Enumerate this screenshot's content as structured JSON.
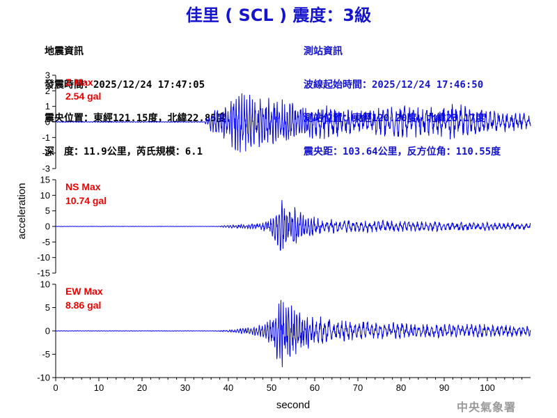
{
  "header": {
    "title": "佳里 ( SCL ) 震度：3級",
    "quake_info": [
      "地震資訊",
      "發震時間：2025/12/24 17:47:05",
      "震央位置：東經121.15度，北緯22.85度",
      "深　度：11.9公里，芮氏規模：6.1"
    ],
    "station_info": [
      "測站資訊",
      "波線起始時間：2025/12/24 17:46:50",
      "測站位置：東經120.20度，北緯23.17度",
      "震央距：103.64公里，反方位角：110.55度"
    ]
  },
  "credit": "中央氣象署",
  "colors": {
    "trace": "#0000ee",
    "max_label": "#ee0000",
    "title": "#1414cc"
  },
  "chart_data": {
    "type": "line",
    "xlabel": "second",
    "ylabel": "acceleration",
    "xlim": [
      0,
      110
    ],
    "x_ticks": [
      0,
      10,
      20,
      30,
      40,
      50,
      60,
      70,
      80,
      90,
      100
    ],
    "panels": [
      {
        "component": "Z",
        "max_label": "Z Max",
        "max_value": "2.54 gal",
        "ylim": [
          -3,
          3
        ],
        "y_ticks": [
          -3,
          -2,
          -1,
          0,
          1,
          2,
          3
        ],
        "envelope": [
          [
            0,
            0.03
          ],
          [
            34.5,
            0.03
          ],
          [
            35.5,
            0.6
          ],
          [
            38,
            1.2
          ],
          [
            40,
            1.3
          ],
          [
            42,
            2.54
          ],
          [
            45,
            1.8
          ],
          [
            50,
            1.6
          ],
          [
            55,
            1.4
          ],
          [
            60,
            1.2
          ],
          [
            65,
            1.0
          ],
          [
            70,
            0.8
          ],
          [
            75,
            1.1
          ],
          [
            80,
            1.1
          ],
          [
            85,
            1.0
          ],
          [
            90,
            1.1
          ],
          [
            93,
            1.2
          ],
          [
            97,
            0.9
          ],
          [
            105,
            0.7
          ],
          [
            110,
            0.5
          ]
        ]
      },
      {
        "component": "NS",
        "max_label": "NS Max",
        "max_value": "10.74 gal",
        "ylim": [
          -15,
          15
        ],
        "y_ticks": [
          -15,
          -10,
          -5,
          0,
          5,
          10,
          15
        ],
        "envelope": [
          [
            0,
            0.05
          ],
          [
            37,
            0.05
          ],
          [
            40,
            0.5
          ],
          [
            45,
            1.0
          ],
          [
            49,
            2.0
          ],
          [
            50,
            3.0
          ],
          [
            51,
            6.0
          ],
          [
            52,
            9.5
          ],
          [
            53,
            8.0
          ],
          [
            54,
            10.74
          ],
          [
            55,
            9.0
          ],
          [
            56,
            7.0
          ],
          [
            58,
            4.0
          ],
          [
            62,
            2.5
          ],
          [
            70,
            2.2
          ],
          [
            80,
            1.8
          ],
          [
            90,
            1.6
          ],
          [
            100,
            1.4
          ],
          [
            110,
            1.0
          ]
        ]
      },
      {
        "component": "EW",
        "max_label": "EW Max",
        "max_value": "8.86 gal",
        "ylim": [
          -10,
          10
        ],
        "y_ticks": [
          -10,
          -5,
          0,
          5,
          10
        ],
        "envelope": [
          [
            0,
            0.05
          ],
          [
            37,
            0.05
          ],
          [
            40,
            0.3
          ],
          [
            45,
            0.8
          ],
          [
            48,
            1.5
          ],
          [
            50,
            3.0
          ],
          [
            51,
            6.5
          ],
          [
            52,
            8.86
          ],
          [
            53,
            7.5
          ],
          [
            54,
            7.8
          ],
          [
            55,
            6.0
          ],
          [
            56,
            5.5
          ],
          [
            58,
            5.0
          ],
          [
            60,
            3.5
          ],
          [
            65,
            2.8
          ],
          [
            70,
            2.2
          ],
          [
            80,
            1.8
          ],
          [
            90,
            1.6
          ],
          [
            100,
            1.5
          ],
          [
            110,
            1.2
          ]
        ]
      }
    ]
  }
}
